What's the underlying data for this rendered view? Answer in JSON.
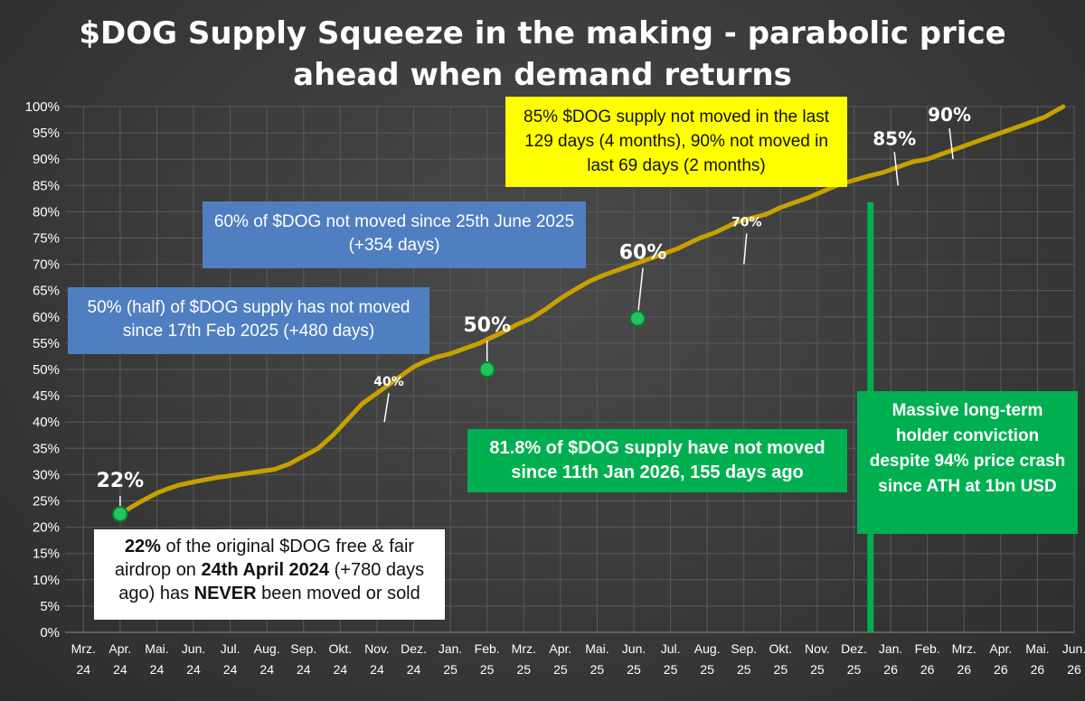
{
  "title": "$DOG Supply Squeeze in the making - parabolic price ahead when demand returns",
  "colors": {
    "background": "#3a3a3a",
    "line": "#c8a000",
    "marker": "#22c55e",
    "vline": "#00b050",
    "grid": "#5a5a5a",
    "text": "#ffffff"
  },
  "chart_data": {
    "type": "line",
    "title": "$DOG Supply Squeeze in the making - parabolic price ahead when demand returns",
    "xlabel": "",
    "ylabel": "",
    "ylim": [
      0,
      100
    ],
    "y_ticks": [
      "0%",
      "5%",
      "10%",
      "15%",
      "20%",
      "25%",
      "30%",
      "35%",
      "40%",
      "45%",
      "50%",
      "55%",
      "60%",
      "65%",
      "70%",
      "75%",
      "80%",
      "85%",
      "90%",
      "95%",
      "100%"
    ],
    "x_ticks": [
      {
        "month": "Mrz.",
        "year": "24"
      },
      {
        "month": "Apr.",
        "year": "24"
      },
      {
        "month": "Mai.",
        "year": "24"
      },
      {
        "month": "Jun.",
        "year": "24"
      },
      {
        "month": "Jul.",
        "year": "24"
      },
      {
        "month": "Aug.",
        "year": "24"
      },
      {
        "month": "Sep.",
        "year": "24"
      },
      {
        "month": "Okt.",
        "year": "24"
      },
      {
        "month": "Nov.",
        "year": "24"
      },
      {
        "month": "Dez.",
        "year": "24"
      },
      {
        "month": "Jan.",
        "year": "25"
      },
      {
        "month": "Feb.",
        "year": "25"
      },
      {
        "month": "Mrz.",
        "year": "25"
      },
      {
        "month": "Apr.",
        "year": "25"
      },
      {
        "month": "Mai.",
        "year": "25"
      },
      {
        "month": "Jun.",
        "year": "25"
      },
      {
        "month": "Jul.",
        "year": "25"
      },
      {
        "month": "Aug.",
        "year": "25"
      },
      {
        "month": "Sep.",
        "year": "25"
      },
      {
        "month": "Okt.",
        "year": "25"
      },
      {
        "month": "Nov.",
        "year": "25"
      },
      {
        "month": "Dez.",
        "year": "25"
      },
      {
        "month": "Jan.",
        "year": "26"
      },
      {
        "month": "Feb.",
        "year": "26"
      },
      {
        "month": "Mrz.",
        "year": "26"
      },
      {
        "month": "Apr.",
        "year": "26"
      },
      {
        "month": "Mai.",
        "year": "26"
      },
      {
        "month": "Jun.",
        "year": "26"
      }
    ],
    "series": [
      {
        "x": [
          1.0,
          1.3,
          1.6,
          2.0,
          2.3,
          2.6,
          3.0,
          3.3,
          3.6,
          4.0,
          4.4,
          4.8,
          5.2,
          5.6,
          6.0,
          6.4,
          6.8,
          7.2,
          7.6,
          8.0,
          8.4,
          8.8,
          9.0,
          9.3,
          9.6,
          10.0,
          10.4,
          10.8,
          11.0,
          11.4,
          11.8,
          12.2,
          12.6,
          13.0,
          13.4,
          13.8,
          14.2,
          14.6,
          15.0,
          15.4,
          15.8,
          16.2,
          16.5,
          16.8,
          17.2,
          17.5,
          17.8,
          18.2,
          18.6,
          19.0,
          19.4,
          19.8,
          20.2,
          20.6,
          21.0,
          21.4,
          21.8,
          22.2,
          22.6,
          23.0,
          23.4,
          23.8,
          24.2,
          24.6,
          25.0,
          25.4,
          25.8,
          26.2,
          26.7
        ],
        "y": [
          22.5,
          23.8,
          25.0,
          26.5,
          27.3,
          28.0,
          28.6,
          29.0,
          29.4,
          29.8,
          30.2,
          30.6,
          31.0,
          32.0,
          33.5,
          35.0,
          37.5,
          40.5,
          43.5,
          45.5,
          47.5,
          49.5,
          50.5,
          51.5,
          52.3,
          53.0,
          54.0,
          55.0,
          55.7,
          57.0,
          58.5,
          59.7,
          61.5,
          63.5,
          65.2,
          66.8,
          68.0,
          69.0,
          70.0,
          71.0,
          72.0,
          73.0,
          74.0,
          75.0,
          76.0,
          77.0,
          78.0,
          78.8,
          79.5,
          80.8,
          81.8,
          82.8,
          84.0,
          85.2,
          86.0,
          86.8,
          87.5,
          88.5,
          89.5,
          90.0,
          91.0,
          92.0,
          93.0,
          94.0,
          95.0,
          96.0,
          97.0,
          98.0,
          100.0
        ]
      }
    ],
    "markers": [
      {
        "x": 1.0,
        "y": 22.5,
        "label": "22%"
      },
      {
        "x": 11.0,
        "y": 50.0,
        "label": "50%"
      },
      {
        "x": 15.1,
        "y": 59.7,
        "label": "60%"
      }
    ],
    "point_labels": [
      {
        "x": 8.2,
        "y": 40.0,
        "label": "40%"
      },
      {
        "x": 18.0,
        "y": 70.0,
        "label": "70%"
      },
      {
        "x": 22.2,
        "y": 85.0,
        "label": "85%"
      },
      {
        "x": 23.7,
        "y": 90.0,
        "label": "90%"
      }
    ],
    "vertical_line_x": 21.45,
    "grid": true
  },
  "annotations": {
    "white_box": {
      "p1": "22%",
      "p2": " of the original $DOG free & fair airdrop on ",
      "p3": "24th April 2024",
      "p4": " (+780 days ago) has ",
      "p5": "NEVER",
      "p6": " been moved or sold"
    },
    "blue_box_1": "50% (half) of $DOG supply has not moved since 17th Feb 2025 (+480 days)",
    "blue_box_2": "60% of $DOG not moved since 25th June 2025 (+354 days)",
    "yellow_box": "85% $DOG supply not moved in the last 129 days (4 months), 90% not moved in last 69 days (2 months)",
    "green_box_1": "81.8% of $DOG supply have not moved since 11th Jan 2026, 155 days ago",
    "green_box_2": "Massive long-term holder conviction despite 94% price crash since ATH at 1bn USD"
  }
}
